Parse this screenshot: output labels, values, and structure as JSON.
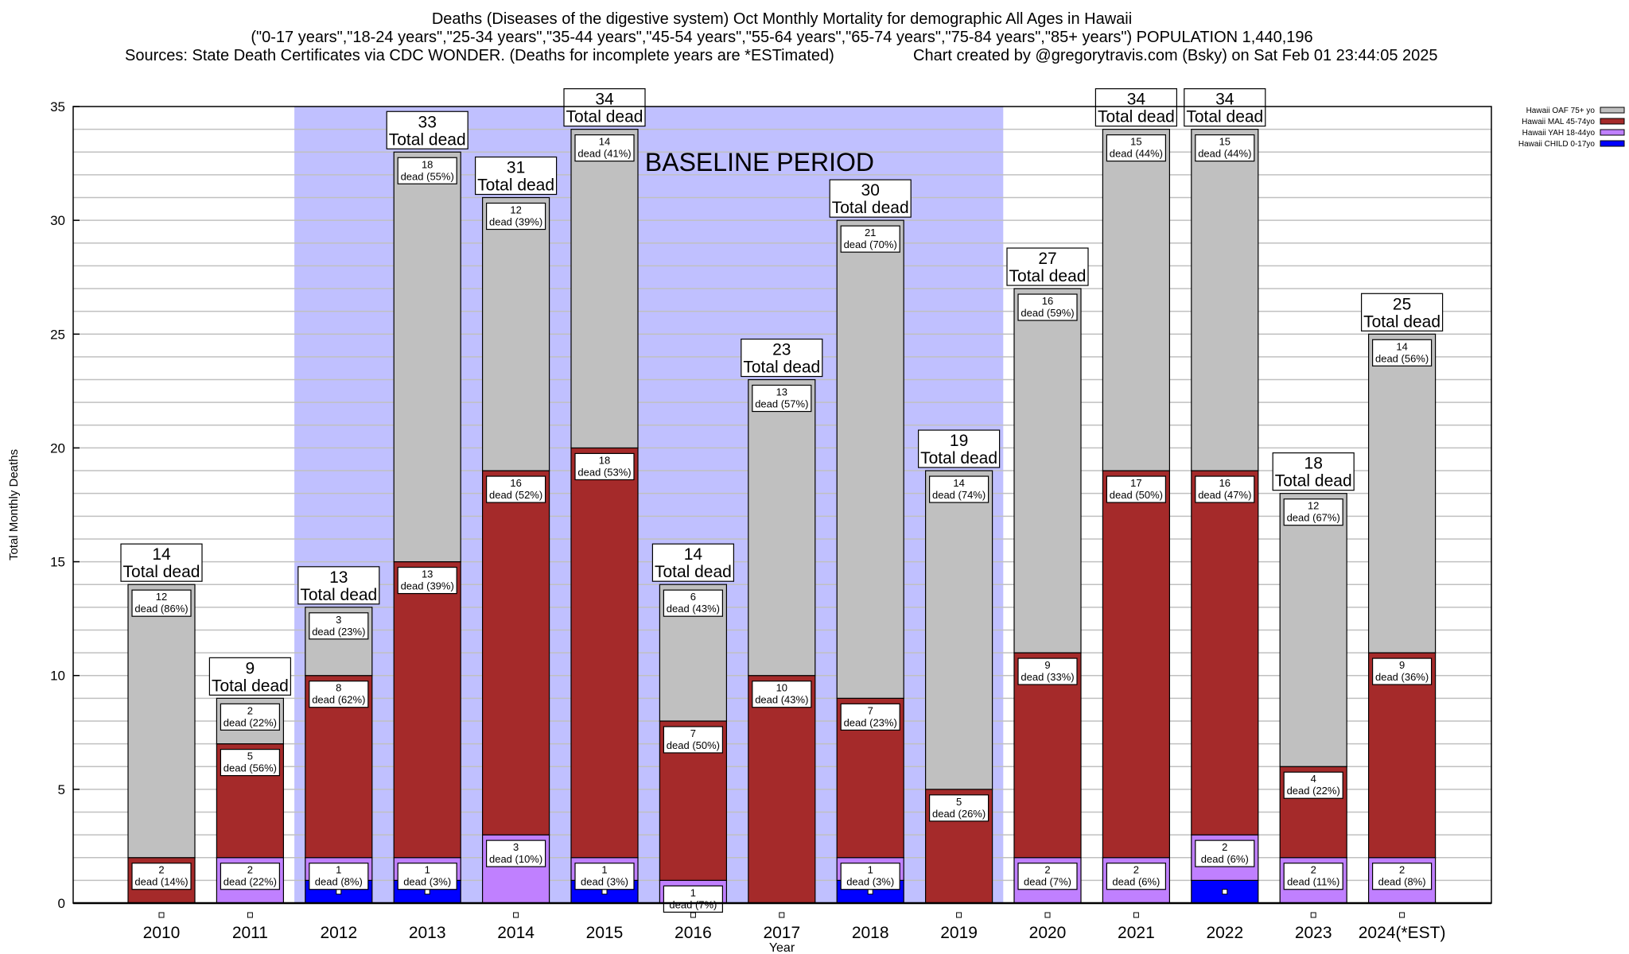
{
  "chart_data": {
    "type": "bar",
    "stacked": true,
    "title_lines": [
      "Deaths (Diseases of the digestive system) Oct Monthly Mortality for demographic All Ages in Hawaii",
      "(\"0-17 years\",\"18-24 years\",\"25-34 years\",\"35-44 years\",\"45-54 years\",\"55-64 years\",\"65-74 years\",\"75-84 years\",\"85+ years\") POPULATION 1,440,196",
      "Sources: State Death Certificates via CDC WONDER. (Deaths for incomplete years are *ESTimated)",
      "Chart created by @gregorytravis.com (Bsky) on Sat Feb 01 23:44:05 2025"
    ],
    "xlabel": "Year",
    "ylabel": "Total Monthly Deaths",
    "ylim": [
      0,
      35
    ],
    "yticks": [
      0,
      5,
      10,
      15,
      20,
      25,
      30,
      35
    ],
    "grid": true,
    "legend_placement": "top-right",
    "baseline": {
      "label": "BASELINE PERIOD",
      "from": "2012",
      "to": "2019",
      "color": "#c0c0ff"
    },
    "total_label": "Total dead",
    "dead_word": "dead",
    "categories": [
      "2010",
      "2011",
      "2012",
      "2013",
      "2014",
      "2015",
      "2016",
      "2017",
      "2018",
      "2019",
      "2020",
      "2021",
      "2022",
      "2023",
      "2024(*EST)"
    ],
    "totals": [
      14,
      9,
      13,
      33,
      31,
      34,
      14,
      23,
      30,
      19,
      27,
      34,
      34,
      18,
      25
    ],
    "series": [
      {
        "name": "Hawaii CHILD 0-17yo",
        "color": "#0000ff",
        "values": [
          0,
          0,
          1,
          1,
          0,
          1,
          0,
          0,
          1,
          0,
          0,
          0,
          1,
          0,
          0
        ],
        "pct": [
          null,
          null,
          null,
          null,
          null,
          null,
          null,
          null,
          null,
          null,
          null,
          null,
          null,
          null,
          null
        ]
      },
      {
        "name": "Hawaii YAH 18-44yo",
        "color": "#c080ff",
        "values": [
          0,
          2,
          1,
          1,
          3,
          1,
          1,
          0,
          1,
          0,
          2,
          2,
          2,
          2,
          2
        ],
        "pct": [
          null,
          "22%",
          "8%",
          "3%",
          "10%",
          "3%",
          "7%",
          null,
          "3%",
          null,
          "7%",
          "6%",
          "6%",
          "11%",
          "8%"
        ]
      },
      {
        "name": "Hawaii MAL 45-74yo",
        "color": "#a52a2a",
        "values": [
          2,
          5,
          8,
          13,
          16,
          18,
          7,
          10,
          7,
          5,
          9,
          17,
          16,
          4,
          9
        ],
        "pct": [
          "14%",
          "56%",
          "62%",
          "39%",
          "52%",
          "53%",
          "50%",
          "43%",
          "23%",
          "26%",
          "33%",
          "50%",
          "47%",
          "22%",
          "36%"
        ]
      },
      {
        "name": "Hawaii OAF 75+ yo",
        "color": "#c0c0c0",
        "values": [
          12,
          2,
          3,
          18,
          12,
          14,
          6,
          13,
          21,
          14,
          16,
          15,
          15,
          12,
          14
        ],
        "pct": [
          "86%",
          "22%",
          "23%",
          "55%",
          "39%",
          "41%",
          "43%",
          "57%",
          "70%",
          "74%",
          "59%",
          "44%",
          "44%",
          "67%",
          "56%"
        ]
      }
    ]
  }
}
